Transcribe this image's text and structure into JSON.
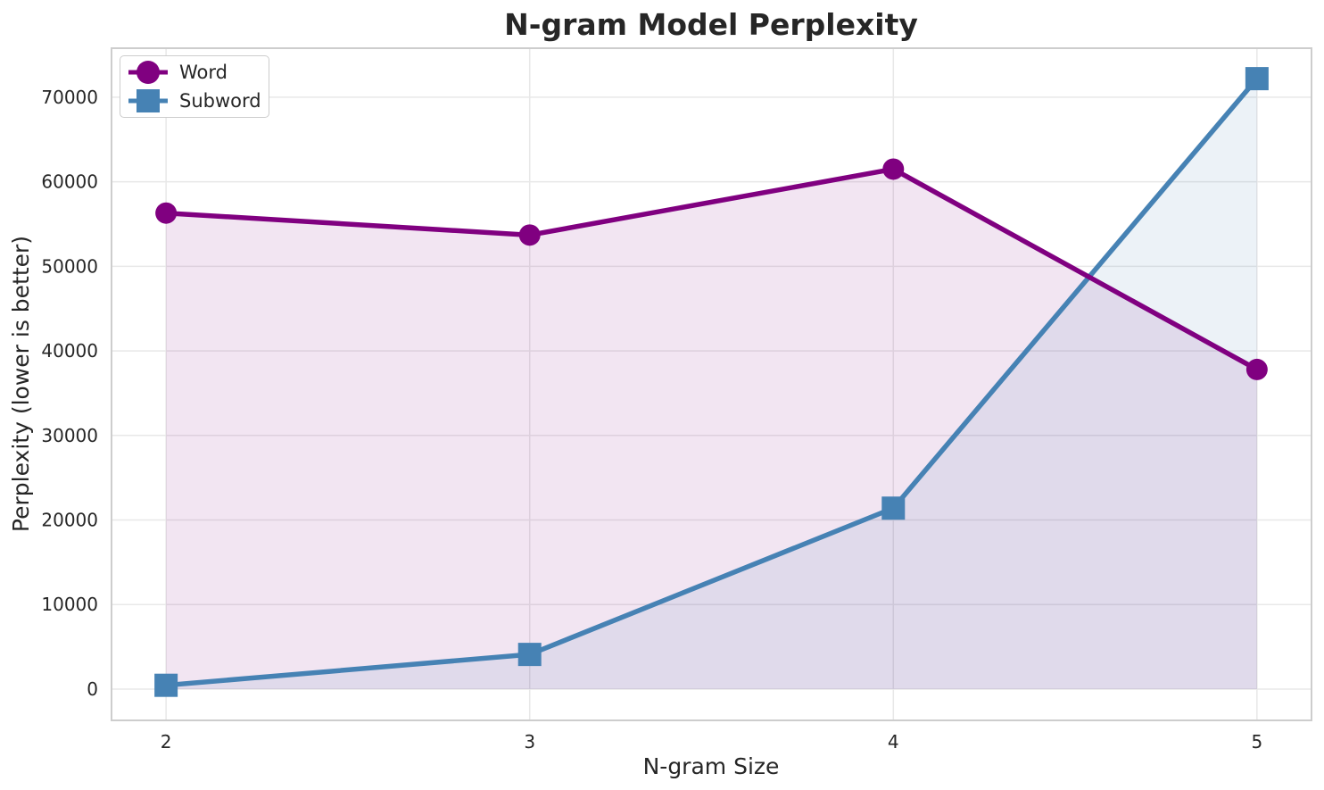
{
  "chart_data": {
    "type": "line",
    "title": "N-gram Model Perplexity",
    "xlabel": "N-gram Size",
    "ylabel": "Perplexity (lower is better)",
    "x": [
      2,
      3,
      4,
      5
    ],
    "series": [
      {
        "name": "Word",
        "marker": "circle",
        "color": "#800080",
        "values": [
          56300,
          53700,
          61500,
          37800
        ]
      },
      {
        "name": "Subword",
        "marker": "square",
        "color": "#4682B4",
        "values": [
          450,
          4100,
          21400,
          72200
        ]
      }
    ],
    "fill_to_zero": true,
    "fill_opacity": 0.1,
    "xlim": [
      1.85,
      5.15
    ],
    "ylim": [
      -3700,
      75800
    ],
    "xticks": [
      2,
      3,
      4,
      5
    ],
    "xtick_labels": [
      "2",
      "3",
      "4",
      "5"
    ],
    "yticks": [
      0,
      10000,
      20000,
      30000,
      40000,
      50000,
      60000,
      70000
    ],
    "ytick_labels": [
      "0",
      "10000",
      "20000",
      "30000",
      "40000",
      "50000",
      "60000",
      "70000"
    ],
    "grid": true,
    "legend_position": "upper left"
  },
  "colors": {
    "text": "#262626",
    "grid": "#e8e8e8",
    "frame": "#cdcdcd",
    "background": "#ffffff"
  }
}
